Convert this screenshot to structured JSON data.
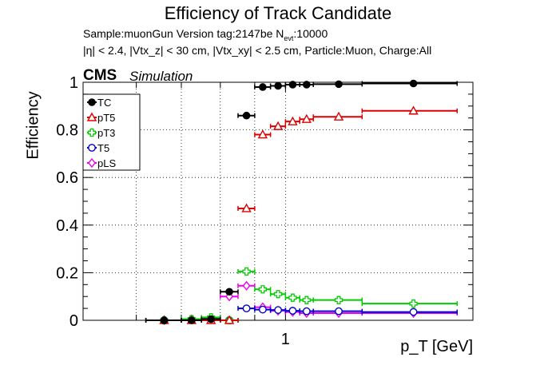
{
  "chart_data": {
    "type": "scatter",
    "title": "Efficiency of Track Candidate",
    "info_line1": "Sample:muonGun   Version tag:2147be  N",
    "info_line1_sub": "evt",
    "info_line1_tail": ":10000",
    "info_line2": "|η| < 2.4, |Vtx_z| < 30 cm, |Vtx_xy| < 2.5 cm, Particle:Muon, Charge:All",
    "experiment_label": "CMS",
    "experiment_sublabel": "Simulation",
    "xlabel": "p_T [GeV]",
    "ylabel": "Efficiency",
    "xscale": "log",
    "xlim": [
      0.5,
      1.9
    ],
    "ylim": [
      0,
      1.0
    ],
    "grid": true,
    "legend_position": "top-left",
    "y_ticks": [
      "0",
      "0.2",
      "0.4",
      "0.6",
      "0.8",
      "1"
    ],
    "x_ticks": [
      "1"
    ],
    "bins": [
      {
        "x": 0.66,
        "xlo": 0.62,
        "xhi": 0.7
      },
      {
        "x": 0.725,
        "xlo": 0.7,
        "xhi": 0.75
      },
      {
        "x": 0.775,
        "xlo": 0.75,
        "xhi": 0.8
      },
      {
        "x": 0.825,
        "xlo": 0.8,
        "xhi": 0.85
      },
      {
        "x": 0.875,
        "xlo": 0.85,
        "xhi": 0.9
      },
      {
        "x": 0.925,
        "xlo": 0.9,
        "xhi": 0.95
      },
      {
        "x": 0.975,
        "xlo": 0.95,
        "xhi": 1.0
      },
      {
        "x": 1.025,
        "xlo": 1.0,
        "xhi": 1.05
      },
      {
        "x": 1.075,
        "xlo": 1.05,
        "xhi": 1.1
      },
      {
        "x": 1.2,
        "xlo": 1.1,
        "xhi": 1.3
      },
      {
        "x": 1.55,
        "xlo": 1.3,
        "xhi": 1.8
      }
    ],
    "series": [
      {
        "name": "TC",
        "color": "#000000",
        "marker": "filled-circle",
        "values": [
          0.0,
          0.0,
          0.005,
          0.12,
          0.86,
          0.98,
          0.985,
          0.99,
          0.99,
          0.992,
          0.995
        ]
      },
      {
        "name": "pT5",
        "color": "#dd0000",
        "marker": "open-triangle",
        "values": [
          0.0,
          0.0,
          0.0,
          0.0,
          0.47,
          0.78,
          0.815,
          0.835,
          0.845,
          0.855,
          0.88
        ]
      },
      {
        "name": "pT3",
        "color": "#00cc00",
        "marker": "open-cross",
        "values": [
          0.0,
          0.005,
          0.012,
          0.0,
          0.205,
          0.13,
          0.11,
          0.095,
          0.085,
          0.085,
          0.07
        ]
      },
      {
        "name": "T5",
        "color": "#0000cc",
        "marker": "open-circle",
        "values": [
          0.0,
          0.002,
          0.003,
          0.0,
          0.05,
          0.045,
          0.043,
          0.04,
          0.038,
          0.038,
          0.035
        ]
      },
      {
        "name": "pLS",
        "color": "#ee00ee",
        "marker": "open-diamond",
        "values": [
          0.0,
          0.004,
          0.01,
          0.1,
          0.145,
          0.055,
          0.04,
          0.035,
          0.03,
          0.03,
          0.03
        ]
      }
    ]
  }
}
